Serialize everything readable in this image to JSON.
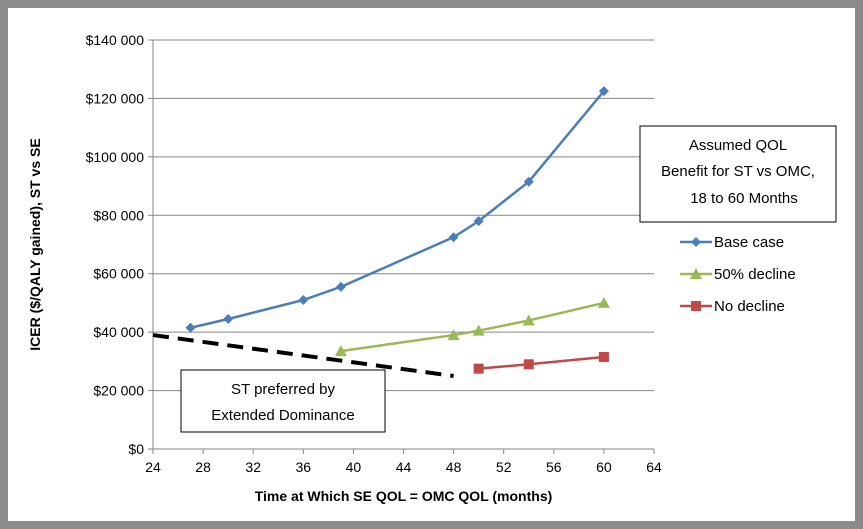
{
  "chart_data": {
    "type": "line",
    "title": "",
    "xlabel": "Time at Which SE QOL = OMC QOL (months)",
    "ylabel": "ICER ($/QALY gained), ST vs SE",
    "xlim": [
      24,
      64
    ],
    "ylim": [
      0,
      140000
    ],
    "x_ticks": [
      "24",
      "28",
      "32",
      "36",
      "40",
      "44",
      "48",
      "52",
      "56",
      "60",
      "64"
    ],
    "y_ticks": [
      "$0",
      "$20 000",
      "$40 000",
      "$60 000",
      "$80 000",
      "$100 000",
      "$120 000",
      "$140 000"
    ],
    "grid": "horizontal",
    "legend_position": "right",
    "legend_title": [
      "Assumed QOL",
      "Benefit for ST vs OMC,",
      "18 to 60 Months"
    ],
    "series": [
      {
        "name": "Base case",
        "color": "#4a7ebb",
        "marker": "diamond",
        "points": [
          [
            27,
            41500
          ],
          [
            30,
            44500
          ],
          [
            36,
            51000
          ],
          [
            39,
            55500
          ],
          [
            48,
            72500
          ],
          [
            50,
            78000
          ],
          [
            54,
            91500
          ],
          [
            60,
            122500
          ]
        ]
      },
      {
        "name": "50% decline",
        "color": "#98b954",
        "marker": "triangle",
        "points": [
          [
            39,
            33500
          ],
          [
            48,
            39000
          ],
          [
            50,
            40500
          ],
          [
            54,
            44000
          ],
          [
            60,
            50000
          ]
        ]
      },
      {
        "name": "No decline",
        "color": "#be4b48",
        "marker": "square",
        "points": [
          [
            50,
            27500
          ],
          [
            54,
            29000
          ],
          [
            60,
            31500
          ]
        ]
      }
    ],
    "annotations": {
      "dominance_line": {
        "style": "dashed",
        "color": "#000000",
        "points": [
          [
            24,
            39000
          ],
          [
            48,
            25000
          ]
        ]
      },
      "dominance_box": [
        "ST preferred by",
        "Extended Dominance"
      ]
    }
  }
}
